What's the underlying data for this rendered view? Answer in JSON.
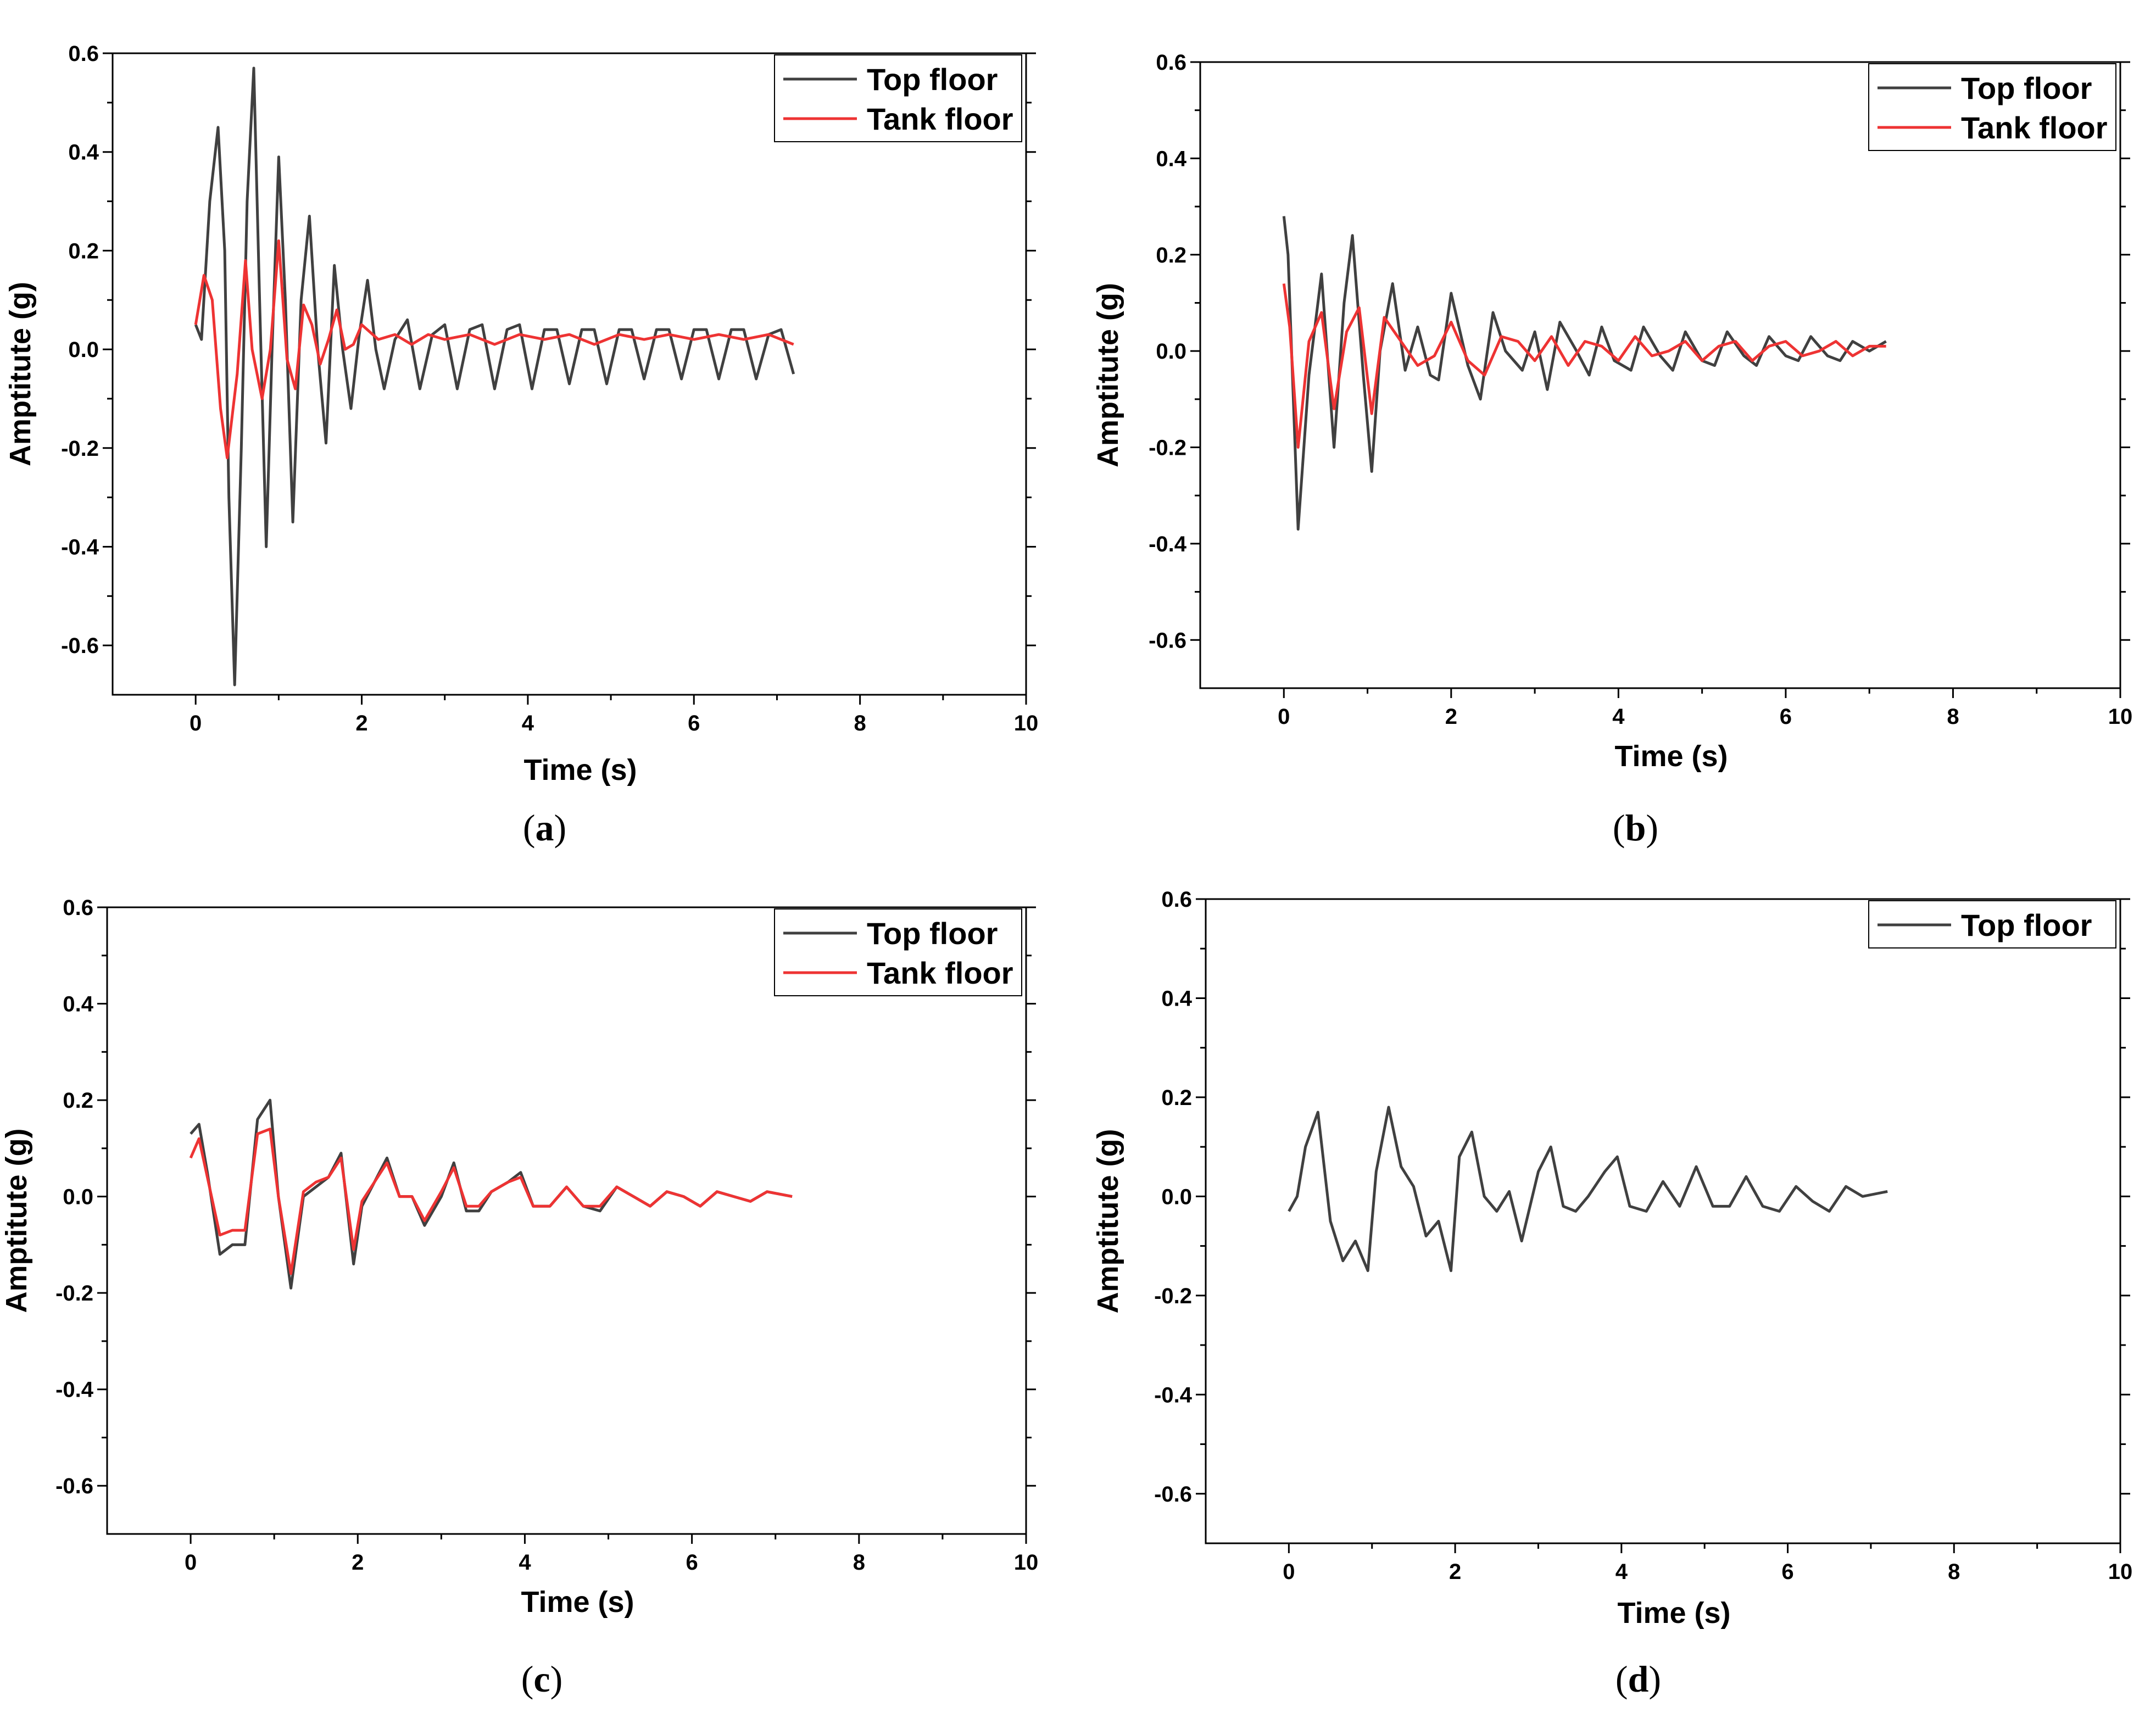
{
  "figure": {
    "colors": {
      "top_floor": "#404040",
      "tank_floor": "#ee3333",
      "axis": "#000000"
    }
  },
  "chart_data": [
    {
      "type": "line",
      "caption": "a",
      "xlabel": "Time (s)",
      "ylabel": "Amptitute (g)",
      "xlim": [
        -1,
        10
      ],
      "ylim": [
        -0.7,
        0.6
      ],
      "xticks": [
        "0",
        "2",
        "4",
        "6",
        "8",
        "10"
      ],
      "yticks": [
        "-0.6",
        "-0.4",
        "-0.2",
        "0.0",
        "0.2",
        "0.4",
        "0.6"
      ],
      "legend": {
        "position": "top-right",
        "entries": [
          "Top floor",
          "Tank floor"
        ]
      },
      "series": [
        {
          "name": "Top floor",
          "color": "#404040",
          "x": [
            0,
            0.07,
            0.17,
            0.27,
            0.35,
            0.4,
            0.47,
            0.55,
            0.62,
            0.7,
            0.77,
            0.85,
            0.92,
            1.0,
            1.08,
            1.17,
            1.27,
            1.37,
            1.47,
            1.57,
            1.67,
            1.77,
            1.87,
            1.97,
            2.07,
            2.17,
            2.27,
            2.4,
            2.55,
            2.7,
            2.85,
            3.0,
            3.15,
            3.3,
            3.45,
            3.6,
            3.75,
            3.9,
            4.05,
            4.2,
            4.35,
            4.5,
            4.65,
            4.8,
            4.95,
            5.1,
            5.25,
            5.4,
            5.55,
            5.7,
            5.85,
            6.0,
            6.15,
            6.3,
            6.45,
            6.6,
            6.75,
            6.9,
            7.05,
            7.2
          ],
          "y": [
            0.05,
            0.02,
            0.3,
            0.45,
            0.2,
            -0.3,
            -0.68,
            -0.2,
            0.3,
            0.57,
            0.1,
            -0.4,
            0.0,
            0.39,
            0.1,
            -0.35,
            0.1,
            0.27,
            0.0,
            -0.19,
            0.17,
            0.0,
            -0.12,
            0.03,
            0.14,
            0.0,
            -0.08,
            0.02,
            0.06,
            -0.08,
            0.03,
            0.05,
            -0.08,
            0.04,
            0.05,
            -0.08,
            0.04,
            0.05,
            -0.08,
            0.04,
            0.04,
            -0.07,
            0.04,
            0.04,
            -0.07,
            0.04,
            0.04,
            -0.06,
            0.04,
            0.04,
            -0.06,
            0.04,
            0.04,
            -0.06,
            0.04,
            0.04,
            -0.06,
            0.03,
            0.04,
            -0.05
          ]
        },
        {
          "name": "Tank floor",
          "color": "#ee3333",
          "x": [
            0,
            0.1,
            0.2,
            0.3,
            0.38,
            0.5,
            0.6,
            0.68,
            0.8,
            0.9,
            1.0,
            1.1,
            1.2,
            1.3,
            1.4,
            1.5,
            1.6,
            1.7,
            1.8,
            1.9,
            2.0,
            2.2,
            2.4,
            2.6,
            2.8,
            3.0,
            3.3,
            3.6,
            3.9,
            4.2,
            4.5,
            4.8,
            5.1,
            5.4,
            5.7,
            6.0,
            6.3,
            6.6,
            6.9,
            7.2
          ],
          "y": [
            0.05,
            0.15,
            0.1,
            -0.12,
            -0.22,
            -0.05,
            0.18,
            0.0,
            -0.1,
            0.0,
            0.22,
            -0.02,
            -0.08,
            0.09,
            0.05,
            -0.03,
            0.02,
            0.08,
            0.0,
            0.01,
            0.05,
            0.02,
            0.03,
            0.01,
            0.03,
            0.02,
            0.03,
            0.01,
            0.03,
            0.02,
            0.03,
            0.01,
            0.03,
            0.02,
            0.03,
            0.02,
            0.03,
            0.02,
            0.03,
            0.01
          ]
        }
      ]
    },
    {
      "type": "line",
      "caption": "b",
      "xlabel": "Time (s)",
      "ylabel": "Amptitute (g)",
      "xlim": [
        -1,
        10
      ],
      "ylim": [
        -0.7,
        0.6
      ],
      "xticks": [
        "0",
        "2",
        "4",
        "6",
        "8",
        "10"
      ],
      "yticks": [
        "-0.6",
        "-0.4",
        "-0.2",
        "0.0",
        "0.2",
        "0.4",
        "0.6"
      ],
      "legend": {
        "position": "top-right",
        "entries": [
          "Top floor",
          "Tank floor"
        ]
      },
      "series": [
        {
          "name": "Top floor",
          "color": "#404040",
          "x": [
            0,
            0.05,
            0.17,
            0.3,
            0.45,
            0.6,
            0.72,
            0.82,
            0.95,
            1.05,
            1.15,
            1.3,
            1.45,
            1.6,
            1.75,
            1.85,
            2.0,
            2.2,
            2.35,
            2.5,
            2.65,
            2.85,
            3.0,
            3.15,
            3.3,
            3.5,
            3.65,
            3.8,
            3.95,
            4.15,
            4.3,
            4.5,
            4.65,
            4.8,
            5.0,
            5.15,
            5.3,
            5.5,
            5.65,
            5.8,
            6.0,
            6.15,
            6.3,
            6.5,
            6.65,
            6.8,
            7.0,
            7.2
          ],
          "y": [
            0.28,
            0.2,
            -0.37,
            -0.05,
            0.16,
            -0.2,
            0.1,
            0.24,
            -0.05,
            -0.25,
            0.0,
            0.14,
            -0.04,
            0.05,
            -0.05,
            -0.06,
            0.12,
            -0.03,
            -0.1,
            0.08,
            0.0,
            -0.04,
            0.04,
            -0.08,
            0.06,
            0.0,
            -0.05,
            0.05,
            -0.02,
            -0.04,
            0.05,
            -0.01,
            -0.04,
            0.04,
            -0.02,
            -0.03,
            0.04,
            -0.01,
            -0.03,
            0.03,
            -0.01,
            -0.02,
            0.03,
            -0.01,
            -0.02,
            0.02,
            0.0,
            0.02
          ]
        },
        {
          "name": "Tank floor",
          "color": "#ee3333",
          "x": [
            0,
            0.07,
            0.17,
            0.3,
            0.45,
            0.6,
            0.75,
            0.9,
            1.05,
            1.2,
            1.4,
            1.6,
            1.8,
            2.0,
            2.2,
            2.4,
            2.6,
            2.8,
            3.0,
            3.2,
            3.4,
            3.6,
            3.8,
            4.0,
            4.2,
            4.4,
            4.6,
            4.8,
            5.0,
            5.2,
            5.4,
            5.6,
            5.8,
            6.0,
            6.2,
            6.4,
            6.6,
            6.8,
            7.0,
            7.2
          ],
          "y": [
            0.14,
            0.05,
            -0.2,
            0.02,
            0.08,
            -0.12,
            0.04,
            0.09,
            -0.13,
            0.07,
            0.02,
            -0.03,
            -0.01,
            0.06,
            -0.02,
            -0.05,
            0.03,
            0.02,
            -0.02,
            0.03,
            -0.03,
            0.02,
            0.01,
            -0.02,
            0.03,
            -0.01,
            0.0,
            0.02,
            -0.02,
            0.01,
            0.02,
            -0.02,
            0.01,
            0.02,
            -0.01,
            0.0,
            0.02,
            -0.01,
            0.01,
            0.01
          ]
        }
      ]
    },
    {
      "type": "line",
      "caption": "c",
      "xlabel": "Time (s)",
      "ylabel": "Amptitute (g)",
      "xlim": [
        -1,
        10
      ],
      "ylim": [
        -0.7,
        0.6
      ],
      "xticks": [
        "0",
        "2",
        "4",
        "6",
        "8",
        "10"
      ],
      "yticks": [
        "-0.6",
        "-0.4",
        "-0.2",
        "0.0",
        "0.2",
        "0.4",
        "0.6"
      ],
      "legend": {
        "position": "top-right",
        "entries": [
          "Top floor",
          "Tank floor"
        ]
      },
      "series": [
        {
          "name": "Top floor",
          "color": "#404040",
          "x": [
            0,
            0.1,
            0.2,
            0.35,
            0.5,
            0.65,
            0.8,
            0.95,
            1.05,
            1.2,
            1.35,
            1.5,
            1.65,
            1.8,
            1.95,
            2.05,
            2.2,
            2.35,
            2.5,
            2.65,
            2.8,
            3.0,
            3.15,
            3.3,
            3.45,
            3.6,
            3.8,
            3.95,
            4.1,
            4.3,
            4.5,
            4.7,
            4.9,
            5.1,
            5.3,
            5.5,
            5.7,
            5.9,
            6.1,
            6.3,
            6.5,
            6.7,
            6.9,
            7.2
          ],
          "y": [
            0.13,
            0.15,
            0.05,
            -0.12,
            -0.1,
            -0.1,
            0.16,
            0.2,
            0.0,
            -0.19,
            0.0,
            0.02,
            0.04,
            0.09,
            -0.14,
            -0.02,
            0.03,
            0.08,
            0.0,
            0.0,
            -0.06,
            0.0,
            0.07,
            -0.03,
            -0.03,
            0.01,
            0.03,
            0.05,
            -0.02,
            -0.02,
            0.02,
            -0.02,
            -0.03,
            0.02,
            0.0,
            -0.02,
            0.01,
            0.0,
            -0.02,
            0.01,
            0.0,
            -0.01,
            0.01,
            0.0
          ]
        },
        {
          "name": "Tank floor",
          "color": "#ee3333",
          "x": [
            0,
            0.1,
            0.2,
            0.35,
            0.5,
            0.65,
            0.8,
            0.95,
            1.05,
            1.2,
            1.35,
            1.5,
            1.65,
            1.8,
            1.95,
            2.05,
            2.2,
            2.35,
            2.5,
            2.65,
            2.8,
            3.0,
            3.15,
            3.3,
            3.45,
            3.6,
            3.8,
            3.95,
            4.1,
            4.3,
            4.5,
            4.7,
            4.9,
            5.1,
            5.3,
            5.5,
            5.7,
            5.9,
            6.1,
            6.3,
            6.5,
            6.7,
            6.9,
            7.2
          ],
          "y": [
            0.08,
            0.12,
            0.04,
            -0.08,
            -0.07,
            -0.07,
            0.13,
            0.14,
            0.0,
            -0.16,
            0.01,
            0.03,
            0.04,
            0.08,
            -0.11,
            -0.01,
            0.03,
            0.07,
            0.0,
            0.0,
            -0.05,
            0.01,
            0.06,
            -0.02,
            -0.02,
            0.01,
            0.03,
            0.04,
            -0.02,
            -0.02,
            0.02,
            -0.02,
            -0.02,
            0.02,
            0.0,
            -0.02,
            0.01,
            0.0,
            -0.02,
            0.01,
            0.0,
            -0.01,
            0.01,
            0.0
          ]
        }
      ]
    },
    {
      "type": "line",
      "caption": "d",
      "xlabel": "Time (s)",
      "ylabel": "Amptitute (g)",
      "xlim": [
        -1,
        10
      ],
      "ylim": [
        -0.7,
        0.6
      ],
      "xticks": [
        "0",
        "2",
        "4",
        "6",
        "8",
        "10"
      ],
      "yticks": [
        "-0.6",
        "-0.4",
        "-0.2",
        "0.0",
        "0.2",
        "0.4",
        "0.6"
      ],
      "legend": {
        "position": "top-right",
        "entries": [
          "Top floor"
        ]
      },
      "series": [
        {
          "name": "Top floor",
          "color": "#404040",
          "x": [
            0,
            0.1,
            0.2,
            0.35,
            0.5,
            0.65,
            0.8,
            0.95,
            1.05,
            1.2,
            1.35,
            1.5,
            1.65,
            1.8,
            1.95,
            2.05,
            2.2,
            2.35,
            2.5,
            2.65,
            2.8,
            3.0,
            3.15,
            3.3,
            3.45,
            3.6,
            3.8,
            3.95,
            4.1,
            4.3,
            4.5,
            4.7,
            4.9,
            5.1,
            5.3,
            5.5,
            5.7,
            5.9,
            6.1,
            6.3,
            6.5,
            6.7,
            6.9,
            7.2
          ],
          "y": [
            -0.03,
            0.0,
            0.1,
            0.17,
            -0.05,
            -0.13,
            -0.09,
            -0.15,
            0.05,
            0.18,
            0.06,
            0.02,
            -0.08,
            -0.05,
            -0.15,
            0.08,
            0.13,
            0.0,
            -0.03,
            0.01,
            -0.09,
            0.05,
            0.1,
            -0.02,
            -0.03,
            0.0,
            0.05,
            0.08,
            -0.02,
            -0.03,
            0.03,
            -0.02,
            0.06,
            -0.02,
            -0.02,
            0.04,
            -0.02,
            -0.03,
            0.02,
            -0.01,
            -0.03,
            0.02,
            0.0,
            0.01
          ]
        }
      ]
    }
  ]
}
